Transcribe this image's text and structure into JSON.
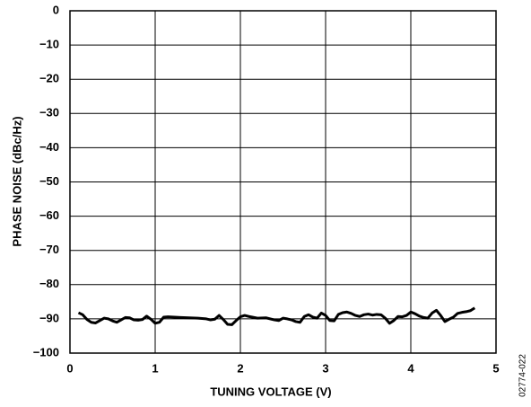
{
  "chart_data": {
    "type": "line",
    "y_label": "PHASE NOISE (dBc/Hz)",
    "x_label": "TUNING VOLTAGE (V)",
    "figure_id": "02774-022",
    "x": [
      0.1,
      0.15,
      0.2,
      0.25,
      0.3,
      0.35,
      0.4,
      0.45,
      0.5,
      0.55,
      0.6,
      0.65,
      0.7,
      0.75,
      0.8,
      0.85,
      0.9,
      0.95,
      1.0,
      1.05,
      1.1,
      1.15,
      1.3,
      1.5,
      1.6,
      1.65,
      1.7,
      1.75,
      1.8,
      1.85,
      1.9,
      1.95,
      2.0,
      2.05,
      2.1,
      2.2,
      2.3,
      2.4,
      2.45,
      2.5,
      2.55,
      2.6,
      2.65,
      2.7,
      2.75,
      2.8,
      2.85,
      2.9,
      2.95,
      3.0,
      3.05,
      3.1,
      3.15,
      3.2,
      3.25,
      3.3,
      3.35,
      3.4,
      3.45,
      3.5,
      3.55,
      3.6,
      3.65,
      3.7,
      3.75,
      3.8,
      3.85,
      3.9,
      3.95,
      4.0,
      4.05,
      4.1,
      4.15,
      4.2,
      4.25,
      4.3,
      4.35,
      4.4,
      4.45,
      4.5,
      4.55,
      4.6,
      4.65,
      4.7,
      4.75
    ],
    "series": [
      {
        "color": "#000000",
        "values": [
          -88.2,
          -88.8,
          -90.2,
          -91,
          -91.2,
          -90.5,
          -89.8,
          -90,
          -90.6,
          -91,
          -90.3,
          -89.6,
          -89.7,
          -90.3,
          -90.4,
          -90.2,
          -89.2,
          -90.1,
          -91.3,
          -91,
          -89.5,
          -89.4,
          -89.6,
          -89.8,
          -90,
          -90.3,
          -90.1,
          -89,
          -90.2,
          -91.6,
          -91.7,
          -90.5,
          -89.4,
          -89,
          -89.3,
          -89.8,
          -89.7,
          -90.3,
          -90.5,
          -89.8,
          -90,
          -90.3,
          -90.8,
          -91,
          -89.3,
          -88.8,
          -89.5,
          -89.8,
          -88.3,
          -89,
          -90.5,
          -90.6,
          -88.7,
          -88.2,
          -88,
          -88.4,
          -89,
          -89.3,
          -88.8,
          -88.6,
          -88.9,
          -88.7,
          -88.8,
          -89.8,
          -91.3,
          -90.5,
          -89.3,
          -89.4,
          -89,
          -88,
          -88.5,
          -89.2,
          -89.6,
          -89.8,
          -88.3,
          -87.5,
          -89,
          -90.8,
          -90.1,
          -89.5,
          -88.4,
          -88.1,
          -87.9,
          -87.6,
          -86.8
        ]
      }
    ],
    "xlim": [
      0,
      5
    ],
    "xticks": [
      0,
      1,
      2,
      3,
      4,
      5
    ],
    "ylim": [
      -100,
      0
    ],
    "yticks": [
      {
        "value": -100,
        "label": "−100"
      },
      {
        "value": -90,
        "label": "−90"
      },
      {
        "value": -80,
        "label": "−80"
      },
      {
        "value": -70,
        "label": "−70"
      },
      {
        "value": -60,
        "label": "−60"
      },
      {
        "value": -50,
        "label": "−50"
      },
      {
        "value": -40,
        "label": "−40"
      },
      {
        "value": -30,
        "label": "−30"
      },
      {
        "value": -20,
        "label": "−20"
      },
      {
        "value": -10,
        "label": "−10"
      },
      0
    ],
    "grid": true
  }
}
